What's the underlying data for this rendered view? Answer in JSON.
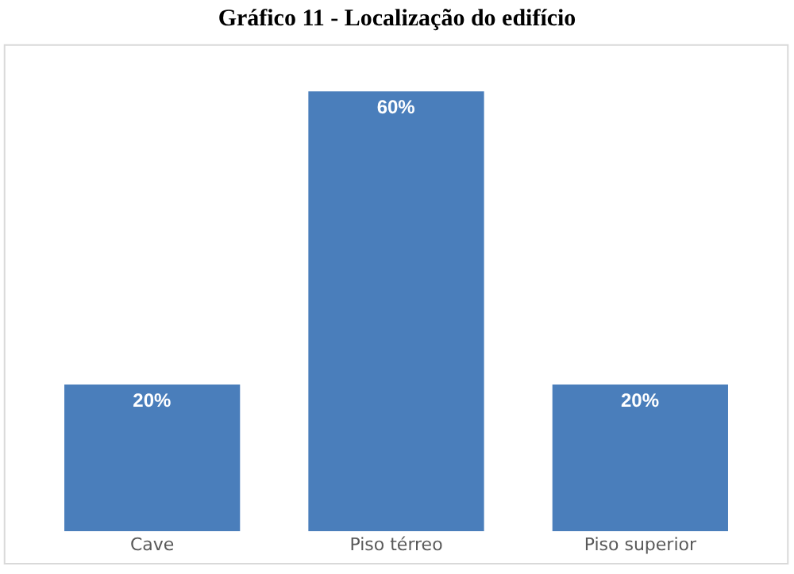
{
  "chart_data": {
    "type": "bar",
    "title": "Gráfico 11 - Localização do edifício",
    "categories": [
      "Cave",
      "Piso térreo",
      "Piso superior"
    ],
    "values": [
      20,
      60,
      20
    ],
    "value_labels": [
      "20%",
      "60%",
      "20%"
    ],
    "color": "#4a7ebb"
  }
}
